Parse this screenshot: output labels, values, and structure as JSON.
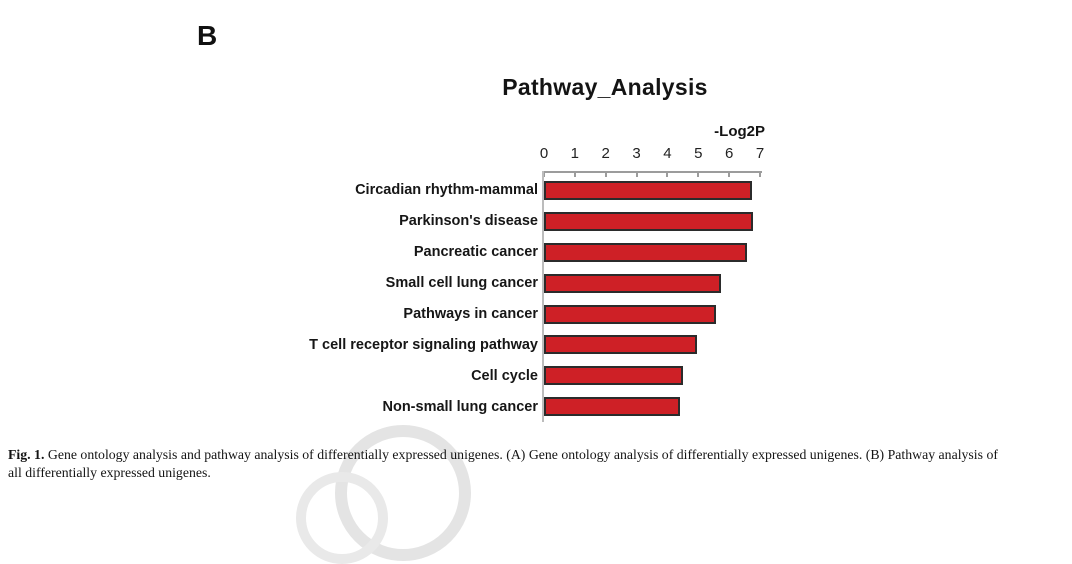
{
  "figure": {
    "panel_label": "B"
  },
  "chart_data": {
    "type": "bar",
    "orientation": "horizontal",
    "title": "Pathway_Analysis",
    "xlabel": "-Log2P",
    "categories": [
      "Circadian rhythm-mammal",
      "Parkinson's disease",
      "Pancreatic cancer",
      "Small cell lung cancer",
      "Pathways in cancer",
      "T cell receptor signaling pathway",
      "Cell cycle",
      "Non-small lung cancer"
    ],
    "values": [
      6.75,
      6.78,
      6.58,
      5.72,
      5.58,
      4.96,
      4.49,
      4.41
    ],
    "xlim": [
      0,
      7
    ],
    "x_ticks": [
      "0",
      "1",
      "2",
      "3",
      "4",
      "5",
      "6",
      "7"
    ],
    "grid": false,
    "legend": "none",
    "bar_color": "#ce2026",
    "bar_border_color": "#2b2b2b",
    "axis_color": "#9c9c9c"
  },
  "caption": {
    "label": "Fig. 1.",
    "line1_rest": " Gene ontology analysis and pathway analysis of differentially expressed unigenes. (A) Gene ontology analysis of differentially expressed unigenes. (B) Pathway analysis of",
    "line2": "all differentially expressed unigenes."
  }
}
